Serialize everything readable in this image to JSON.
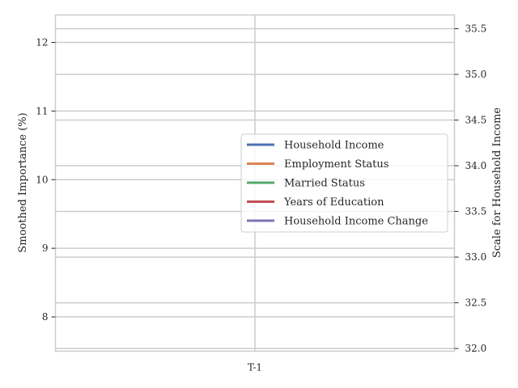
{
  "chart_data": {
    "type": "line",
    "categories": [
      "T-1"
    ],
    "title": "",
    "xlabel": "",
    "ylabel_left": "Smoothed Importance (%)",
    "ylabel_right": "Scale for Household Income",
    "ylim_left": [
      7.5,
      12.4
    ],
    "ylim_right": [
      31.97,
      35.65
    ],
    "yticks_left": [
      8,
      9,
      10,
      11,
      12
    ],
    "yticks_right": [
      32.0,
      32.5,
      33.0,
      33.5,
      34.0,
      34.5,
      35.0,
      35.5
    ],
    "ytick_labels_right": [
      "32.0",
      "32.5",
      "33.0",
      "33.5",
      "34.0",
      "34.5",
      "35.0",
      "35.5"
    ],
    "grid": true,
    "legend_position": "center-right",
    "series": [
      {
        "name": "Household Income",
        "color": "#4c72b0",
        "axis": "right"
      },
      {
        "name": "Employment Status",
        "color": "#dd8452",
        "axis": "left"
      },
      {
        "name": "Married Status",
        "color": "#55a868",
        "axis": "left"
      },
      {
        "name": "Years of Education",
        "color": "#c44e52",
        "axis": "left"
      },
      {
        "name": "Household Income Change",
        "color": "#8172b3",
        "axis": "left"
      }
    ]
  }
}
